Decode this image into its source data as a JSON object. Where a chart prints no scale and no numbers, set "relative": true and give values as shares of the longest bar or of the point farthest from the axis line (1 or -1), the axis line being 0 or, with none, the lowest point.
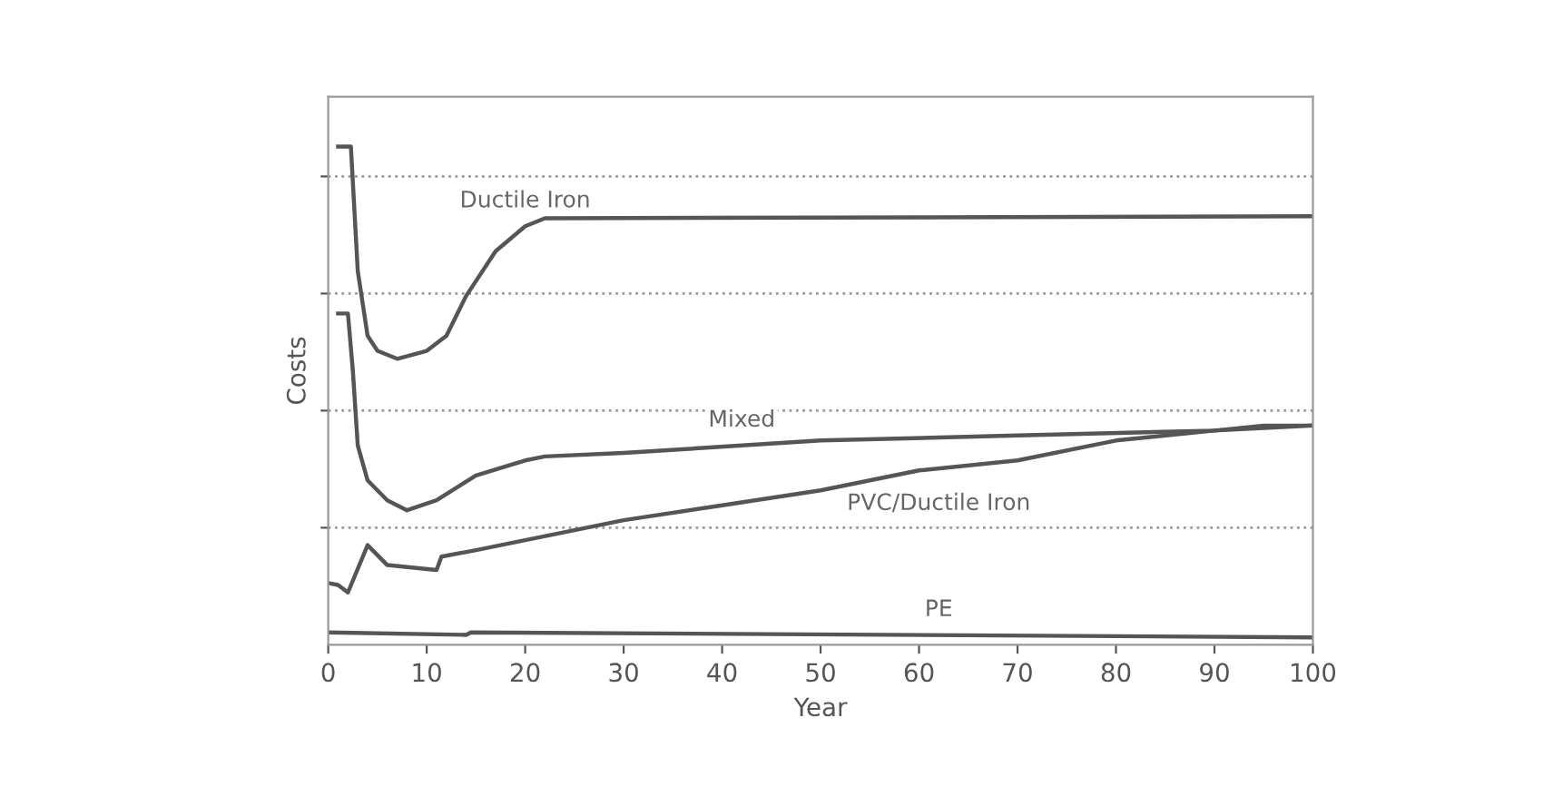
{
  "chart_data": {
    "type": "line",
    "relative": true,
    "xlabel": "Year",
    "ylabel": "Costs",
    "xlim": [
      0,
      100
    ],
    "xticks": [
      0,
      10,
      20,
      30,
      40,
      50,
      60,
      70,
      80,
      90,
      100
    ],
    "grid": "y",
    "line_style": "solid",
    "marker": "none",
    "series": [
      {
        "name": "Ductile Iron",
        "color": "#555555",
        "x": [
          1,
          2.3,
          3,
          4,
          5,
          7,
          10,
          12,
          14,
          17,
          20,
          22,
          100
        ],
        "values": [
          1.0,
          1.0,
          0.75,
          0.62,
          0.59,
          0.574,
          0.59,
          0.62,
          0.7,
          0.79,
          0.84,
          0.856,
          0.86
        ]
      },
      {
        "name": "Mixed",
        "color": "#555555",
        "x": [
          1,
          2,
          2.5,
          3,
          4,
          6,
          8,
          11,
          15,
          20,
          22,
          30,
          50,
          70,
          90,
          100
        ],
        "values": [
          0.665,
          0.665,
          0.55,
          0.4,
          0.33,
          0.29,
          0.27,
          0.29,
          0.34,
          0.37,
          0.378,
          0.385,
          0.41,
          0.42,
          0.43,
          0.44
        ]
      },
      {
        "name": "PVC/Ductile Iron",
        "color": "#555555",
        "x": [
          0,
          1,
          2,
          4,
          6,
          11,
          11.5,
          15,
          20,
          30,
          40,
          50,
          60,
          70,
          80,
          90,
          95,
          100
        ],
        "values": [
          0.124,
          0.12,
          0.105,
          0.2,
          0.16,
          0.15,
          0.177,
          0.19,
          0.21,
          0.25,
          0.28,
          0.31,
          0.35,
          0.37,
          0.41,
          0.43,
          0.44,
          0.44
        ]
      },
      {
        "name": "PE",
        "color": "#555555",
        "x": [
          0,
          14,
          14.5,
          100
        ],
        "values": [
          0.025,
          0.02,
          0.025,
          0.015
        ]
      }
    ]
  }
}
